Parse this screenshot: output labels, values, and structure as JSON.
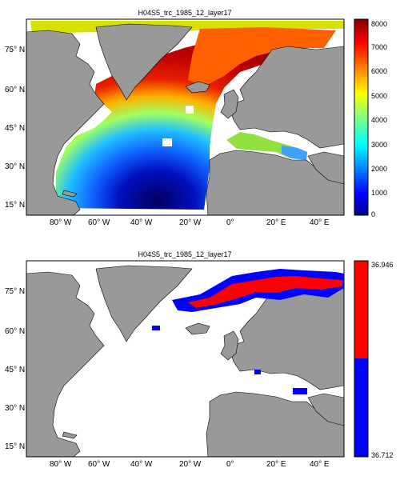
{
  "figure": {
    "panels": [
      {
        "title": "H04S5_trc_1985_12_layer17",
        "y_tick_labels": [
          "75° N",
          "60° N",
          "45° N",
          "30° N",
          "15° N"
        ],
        "x_tick_labels": [
          "80° W",
          "60° W",
          "40° W",
          "20° W",
          "0°",
          "20° E",
          "40° E"
        ],
        "colorbar": {
          "type": "continuous",
          "colormap": "jet",
          "tick_labels": [
            "8000",
            "7000",
            "6000",
            "5000",
            "4000",
            "3000",
            "2000",
            "1000",
            "0"
          ],
          "range": [
            0,
            8000
          ]
        }
      },
      {
        "title": "H04S5_trc_1985_12_layer17",
        "y_tick_labels": [
          "75° N",
          "60° N",
          "45° N",
          "30° N",
          "15° N"
        ],
        "x_tick_labels": [
          "80° W",
          "60° W",
          "40° W",
          "20° W",
          "0°",
          "20° E",
          "40° E"
        ],
        "colorbar": {
          "type": "two-class",
          "top_label": "36.946",
          "bottom_label": "36.712",
          "colors": [
            "#ff0000",
            "#0000ff"
          ]
        }
      }
    ]
  },
  "colors": {
    "land": "#999999",
    "ocean_nodata": "#ffffff"
  }
}
